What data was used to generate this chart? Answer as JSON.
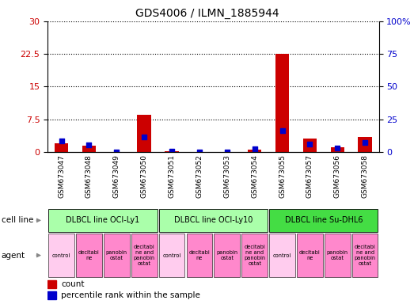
{
  "title": "GDS4006 / ILMN_1885944",
  "samples": [
    "GSM673047",
    "GSM673048",
    "GSM673049",
    "GSM673050",
    "GSM673051",
    "GSM673052",
    "GSM673053",
    "GSM673054",
    "GSM673055",
    "GSM673057",
    "GSM673056",
    "GSM673058"
  ],
  "counts": [
    2.0,
    1.5,
    0.0,
    8.5,
    0.2,
    0.0,
    0.0,
    0.5,
    22.5,
    3.0,
    1.0,
    3.5
  ],
  "percentile_ranks": [
    8.5,
    5.5,
    0.0,
    11.5,
    0.5,
    0.0,
    0.0,
    2.5,
    16.5,
    6.0,
    3.0,
    7.0
  ],
  "count_max": 30,
  "percentile_max": 100,
  "left_yticks": [
    0,
    7.5,
    15,
    22.5,
    30
  ],
  "left_yticklabels": [
    "0",
    "7.5",
    "15",
    "22.5",
    "30"
  ],
  "right_yticks": [
    0,
    25,
    50,
    75,
    100
  ],
  "right_yticklabels": [
    "0",
    "25",
    "50",
    "75",
    "100%"
  ],
  "cell_lines": [
    {
      "label": "DLBCL line OCI-Ly1",
      "start": 0,
      "end": 4,
      "color": "#aaffaa"
    },
    {
      "label": "DLBCL line OCI-Ly10",
      "start": 4,
      "end": 8,
      "color": "#aaffaa"
    },
    {
      "label": "DLBCL line Su-DHL6",
      "start": 8,
      "end": 12,
      "color": "#44dd44"
    }
  ],
  "agents": [
    {
      "label": "control",
      "color": "#ffccee"
    },
    {
      "label": "decitabi\nne",
      "color": "#ff88cc"
    },
    {
      "label": "panobin\nostat",
      "color": "#ff88cc"
    },
    {
      "label": "decitabi\nne and\npanobin\nostat",
      "color": "#ff88cc"
    },
    {
      "label": "control",
      "color": "#ffccee"
    },
    {
      "label": "decitabi\nne",
      "color": "#ff88cc"
    },
    {
      "label": "panobin\nostat",
      "color": "#ff88cc"
    },
    {
      "label": "decitabi\nne and\npanobin\nostat",
      "color": "#ff88cc"
    },
    {
      "label": "control",
      "color": "#ffccee"
    },
    {
      "label": "decitabi\nne",
      "color": "#ff88cc"
    },
    {
      "label": "panobin\nostat",
      "color": "#ff88cc"
    },
    {
      "label": "decitabi\nne and\npanobin\nostat",
      "color": "#ff88cc"
    }
  ],
  "bar_color": "#cc0000",
  "dot_color": "#0000cc",
  "bg_color": "#ffffff",
  "xtick_bg": "#cccccc",
  "left_tick_color": "#cc0000",
  "right_tick_color": "#0000cc",
  "legend_count_color": "#cc0000",
  "legend_pct_color": "#0000cc",
  "grid_style": "dotted",
  "bar_width": 0.5
}
